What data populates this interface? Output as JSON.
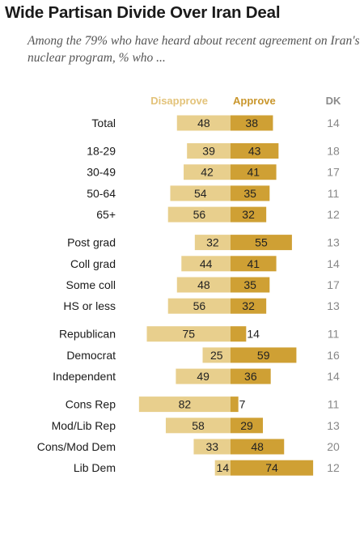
{
  "title": "Wide Partisan Divide Over Iran Deal",
  "subtitle": "Among the 79% who have heard about recent agreement on Iran's nuclear program, % who ...",
  "colors": {
    "disapprove": "#e8cf8d",
    "approve": "#cfa034",
    "disapprove_header": "#e3c37a",
    "approve_header": "#c9962c",
    "dk": "#8a8a8a"
  },
  "chart_data": {
    "type": "bar",
    "orientation": "horizontal-diverging",
    "series": [
      {
        "name": "Disapprove",
        "values": [
          48,
          39,
          42,
          54,
          56,
          32,
          44,
          48,
          56,
          75,
          25,
          49,
          82,
          58,
          33,
          14
        ]
      },
      {
        "name": "Approve",
        "values": [
          38,
          43,
          41,
          35,
          32,
          55,
          41,
          35,
          32,
          14,
          59,
          36,
          7,
          29,
          48,
          74
        ]
      },
      {
        "name": "DK",
        "values": [
          14,
          18,
          17,
          11,
          12,
          13,
          14,
          17,
          13,
          11,
          16,
          14,
          11,
          13,
          20,
          12
        ]
      }
    ],
    "categories": [
      "Total",
      "18-29",
      "30-49",
      "50-64",
      "65+",
      "Post grad",
      "Coll grad",
      "Some coll",
      "HS or less",
      "Republican",
      "Democrat",
      "Independent",
      "Cons Rep",
      "Mod/Lib Rep",
      "Cons/Mod Dem",
      "Lib Dem"
    ],
    "groups": [
      [
        0
      ],
      [
        1,
        2,
        3,
        4
      ],
      [
        5,
        6,
        7,
        8
      ],
      [
        9,
        10,
        11
      ],
      [
        12,
        13,
        14,
        15
      ]
    ],
    "headers": {
      "disapprove": "Disapprove",
      "approve": "Approve",
      "dk": "DK"
    }
  }
}
